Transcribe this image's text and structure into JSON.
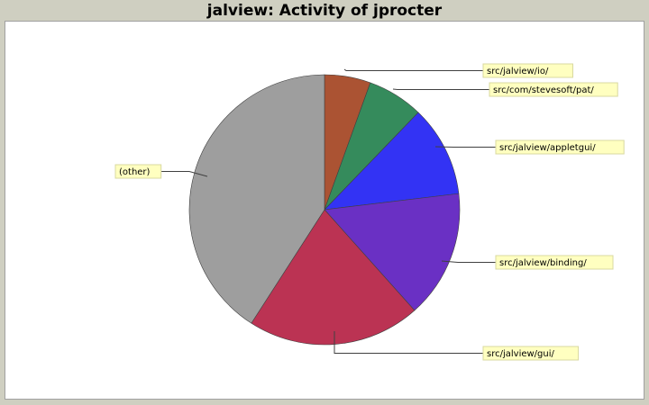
{
  "title": "jalview: Activity of jprocter",
  "chart_data": {
    "type": "pie",
    "title": "jalview: Activity of jprocter",
    "start_angle_deg": 90,
    "direction": "clockwise",
    "slices": [
      {
        "label": "src/jalview/io/",
        "value": 5.5,
        "color": "#ab5333"
      },
      {
        "label": "src/com/stevesoft/pat/",
        "value": 6.7,
        "color": "#358b5c"
      },
      {
        "label": "src/jalview/appletgui/",
        "value": 10.9,
        "color": "#3333f4"
      },
      {
        "label": "src/jalview/binding/",
        "value": 15.3,
        "color": "#6a30c4"
      },
      {
        "label": "src/jalview/gui/",
        "value": 20.7,
        "color": "#bb3353"
      },
      {
        "label": "(other)",
        "value": 40.9,
        "color": "#9e9e9e"
      }
    ]
  }
}
